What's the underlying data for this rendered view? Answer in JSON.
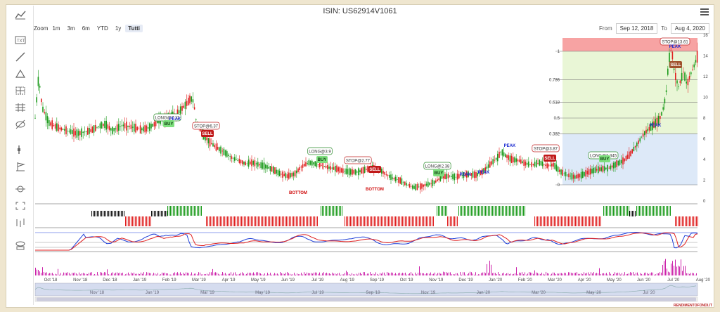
{
  "header": {
    "title": "ISIN: US62914V1061"
  },
  "zoom": {
    "label": "Zoom",
    "buttons": [
      "1m",
      "3m",
      "6m",
      "YTD",
      "1y",
      "Tutti"
    ],
    "selected": "Tutti"
  },
  "range": {
    "from_label": "From",
    "from": "Sep 12, 2018",
    "to_label": "To",
    "to": "Aug 4, 2020"
  },
  "toolbar": {
    "icons": [
      "chart-icon",
      "text-tool-icon",
      "line-tool-icon",
      "triangle-tool-icon",
      "crosshair-tool-icon",
      "grid-tool-icon",
      "eye-off-icon",
      "measure-icon",
      "flag-icon",
      "magnet-icon",
      "expand-icon",
      "indicator-icon",
      "visibility-icon"
    ]
  },
  "watermark": "RENDIMENTOFONDI.IT",
  "colors": {
    "up": "#1a9a1a",
    "down": "#e02020",
    "fib_top": "#f7a3a3",
    "fib_mid": "#e9f6d6",
    "fib_low": "#dde9f8",
    "macd": "#1f3fd8",
    "signal": "#e02020",
    "volume": "#cc22aa",
    "nav_fill": "#d5dcef"
  },
  "chart_data": {
    "type": "candlestick",
    "x_labels": [
      "Oct '18",
      "Nov '18",
      "Dec '18",
      "Jan '19",
      "Feb '19",
      "Mar '19",
      "Apr '19",
      "May '19",
      "Jun '19",
      "Jul '19",
      "Aug '19",
      "Sep '19",
      "Oct '19",
      "Nov '19",
      "Dec '19",
      "Jan '20",
      "Feb '20",
      "Mar '20",
      "Apr '20",
      "May '20",
      "Jun '20",
      "Jul '20",
      "Aug '20"
    ],
    "navigator_labels": [
      "Nov '18",
      "Jan '19",
      "Mar '19",
      "May '19",
      "Jul '19",
      "Sep '19",
      "Nov '19",
      "Jan '20",
      "Mar '20",
      "May '20",
      "Jul '20"
    ],
    "y_ticks": [
      0,
      2,
      4,
      6,
      8,
      10,
      12,
      14,
      16
    ],
    "ylim": [
      0,
      16
    ],
    "fib_levels": [
      {
        "label": "1",
        "value": 1
      },
      {
        "label": "0.786",
        "value": 0.786
      },
      {
        "label": "0.618",
        "value": 0.618
      },
      {
        "label": "0.5",
        "value": 0.5
      },
      {
        "label": "0.382",
        "value": 0.382
      },
      {
        "label": "0",
        "value": 0
      }
    ],
    "price_path": [
      [
        0,
        8
      ],
      [
        5,
        12
      ],
      [
        10,
        9
      ],
      [
        20,
        7.5
      ],
      [
        35,
        7
      ],
      [
        45,
        6.8
      ],
      [
        60,
        6.5
      ],
      [
        80,
        6.8
      ],
      [
        90,
        7.2
      ],
      [
        100,
        7.4
      ],
      [
        110,
        6.8
      ],
      [
        125,
        7.3
      ],
      [
        140,
        7.1
      ],
      [
        150,
        6.9
      ],
      [
        160,
        7.0
      ],
      [
        170,
        7.4
      ],
      [
        175,
        7.8
      ],
      [
        180,
        7.9
      ],
      [
        185,
        7.6
      ],
      [
        190,
        8.1
      ],
      [
        195,
        8.4
      ],
      [
        200,
        8.1
      ],
      [
        205,
        8.6
      ],
      [
        215,
        9.3
      ],
      [
        222,
        9.9
      ],
      [
        226,
        9.6
      ],
      [
        230,
        7.6
      ],
      [
        240,
        6.4
      ],
      [
        250,
        5.6
      ],
      [
        260,
        5.1
      ],
      [
        270,
        4.7
      ],
      [
        280,
        4.2
      ],
      [
        290,
        3.9
      ],
      [
        300,
        3.6
      ],
      [
        310,
        3.7
      ],
      [
        320,
        3.5
      ],
      [
        330,
        3.3
      ],
      [
        340,
        3.0
      ],
      [
        350,
        2.6
      ],
      [
        360,
        2.4
      ],
      [
        370,
        2.6
      ],
      [
        380,
        3.3
      ],
      [
        390,
        3.7
      ],
      [
        400,
        3.6
      ],
      [
        410,
        3.4
      ],
      [
        420,
        3.2
      ],
      [
        430,
        3.1
      ],
      [
        440,
        2.9
      ],
      [
        450,
        2.8
      ],
      [
        460,
        2.8
      ],
      [
        470,
        3.0
      ],
      [
        480,
        3.2
      ],
      [
        490,
        3.1
      ],
      [
        500,
        2.6
      ],
      [
        510,
        2.2
      ],
      [
        520,
        2.0
      ],
      [
        530,
        1.6
      ],
      [
        540,
        1.3
      ],
      [
        550,
        1.4
      ],
      [
        560,
        1.6
      ],
      [
        570,
        1.8
      ],
      [
        580,
        2.3
      ],
      [
        590,
        2.4
      ],
      [
        600,
        2.3
      ],
      [
        610,
        2.5
      ],
      [
        620,
        2.6
      ],
      [
        630,
        2.5
      ],
      [
        640,
        2.9
      ],
      [
        650,
        3.6
      ],
      [
        660,
        4.2
      ],
      [
        665,
        4.8
      ],
      [
        670,
        4.4
      ],
      [
        680,
        4.0
      ],
      [
        690,
        3.9
      ],
      [
        700,
        3.6
      ],
      [
        710,
        3.5
      ],
      [
        720,
        3.7
      ],
      [
        730,
        3.4
      ],
      [
        740,
        3.5
      ],
      [
        745,
        3.1
      ],
      [
        750,
        2.8
      ],
      [
        760,
        2.5
      ],
      [
        770,
        2.3
      ],
      [
        780,
        2.5
      ],
      [
        790,
        2.8
      ],
      [
        800,
        3.0
      ],
      [
        810,
        3.1
      ],
      [
        820,
        3.2
      ],
      [
        830,
        3.6
      ],
      [
        840,
        3.9
      ],
      [
        850,
        4.6
      ],
      [
        860,
        5.6
      ],
      [
        870,
        6.6
      ],
      [
        880,
        7.2
      ],
      [
        890,
        7.8
      ],
      [
        895,
        8.6
      ],
      [
        900,
        10.2
      ],
      [
        904,
        13.6
      ],
      [
        908,
        14.8
      ],
      [
        912,
        12.4
      ],
      [
        918,
        11.0
      ],
      [
        925,
        12.5
      ],
      [
        930,
        11.2
      ],
      [
        935,
        12.2
      ],
      [
        940,
        13.0
      ],
      [
        945,
        14.0
      ]
    ],
    "annotations": [
      {
        "text": "LONG@7.12",
        "kind": "long"
      },
      {
        "text": "BUY",
        "kind": "buy"
      },
      {
        "text": "PEAK",
        "kind": "peak"
      },
      {
        "text": "STOP@6.37",
        "kind": "stop"
      },
      {
        "text": "SELL",
        "kind": "sell"
      },
      {
        "text": "BOTTOM",
        "kind": "bottom"
      },
      {
        "text": "LONG@3.9",
        "kind": "long"
      },
      {
        "text": "BUY",
        "kind": "buy"
      },
      {
        "text": "STOP@2.77",
        "kind": "stop"
      },
      {
        "text": "SELL",
        "kind": "sell"
      },
      {
        "text": "BOTTOM",
        "kind": "bottom"
      },
      {
        "text": "LONG@2.38",
        "kind": "long"
      },
      {
        "text": "BUY",
        "kind": "buy"
      },
      {
        "text": "PEAK",
        "kind": "peak"
      },
      {
        "text": "PEAK",
        "kind": "peak"
      },
      {
        "text": "PEAK",
        "kind": "peak"
      },
      {
        "text": "STOP@3.87",
        "kind": "stop"
      },
      {
        "text": "SELL",
        "kind": "sell"
      },
      {
        "text": "LONG@2.345",
        "kind": "long"
      },
      {
        "text": "BUY",
        "kind": "buy"
      },
      {
        "text": "PEAK",
        "kind": "peak"
      },
      {
        "text": "STOP@13.61",
        "kind": "stop"
      },
      {
        "text": "PEAK",
        "kind": "peak"
      },
      {
        "text": "SELL",
        "kind": "sell"
      }
    ],
    "signal_segments": [
      {
        "state": "neutral",
        "from": 130,
        "to": 178
      },
      {
        "state": "sell",
        "from": 178,
        "to": 188
      },
      {
        "state": "sell",
        "from": 188,
        "to": 215
      },
      {
        "state": "neutral",
        "from": 215,
        "to": 238
      },
      {
        "state": "buy",
        "from": 238,
        "to": 287
      },
      {
        "state": "sell",
        "from": 293,
        "to": 452
      },
      {
        "state": "buy",
        "from": 456,
        "to": 487
      },
      {
        "state": "sell",
        "from": 490,
        "to": 618
      },
      {
        "state": "buy",
        "from": 621,
        "to": 636
      },
      {
        "state": "sell",
        "from": 636,
        "to": 652
      },
      {
        "state": "buy",
        "from": 652,
        "to": 748
      },
      {
        "state": "sell",
        "from": 760,
        "to": 855
      },
      {
        "state": "buy",
        "from": 858,
        "to": 895
      },
      {
        "state": "neutral",
        "from": 895,
        "to": 905
      },
      {
        "state": "buy",
        "from": 905,
        "to": 955
      },
      {
        "state": "sell",
        "from": 960,
        "to": 993
      }
    ]
  }
}
